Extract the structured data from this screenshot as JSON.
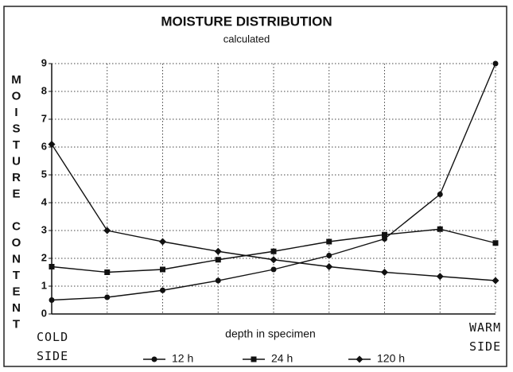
{
  "chart_data": {
    "type": "line",
    "title": "MOISTURE DISTRIBUTION",
    "subtitle": "calculated",
    "x_label": "depth in specimen",
    "y_label": "MOISTURE CONTENT",
    "annotations": [
      "COLD SIDE",
      "WARM SIDE"
    ],
    "categories": [
      null,
      null,
      null,
      null,
      null,
      null,
      null,
      null,
      null
    ],
    "series": [
      {
        "name": "12 h",
        "color": "#111111",
        "marker": "circle",
        "values": [
          0.5,
          0.6,
          0.85,
          1.2,
          1.6,
          2.1,
          2.7,
          4.3,
          9.0
        ]
      },
      {
        "name": "24 h",
        "color": "#111111",
        "marker": "square",
        "values": [
          1.7,
          1.5,
          1.6,
          1.95,
          2.25,
          2.6,
          2.85,
          3.05,
          2.55
        ]
      },
      {
        "name": "120 h",
        "color": "#111111",
        "marker": "diamond",
        "values": [
          6.1,
          3.0,
          2.6,
          2.25,
          1.95,
          1.7,
          1.5,
          1.35,
          1.2
        ]
      }
    ],
    "ylim": [
      0,
      9
    ],
    "yticks": [
      0,
      1,
      2,
      3,
      4,
      5,
      6,
      7,
      8,
      9
    ],
    "grid": true,
    "legend": "bottom"
  }
}
